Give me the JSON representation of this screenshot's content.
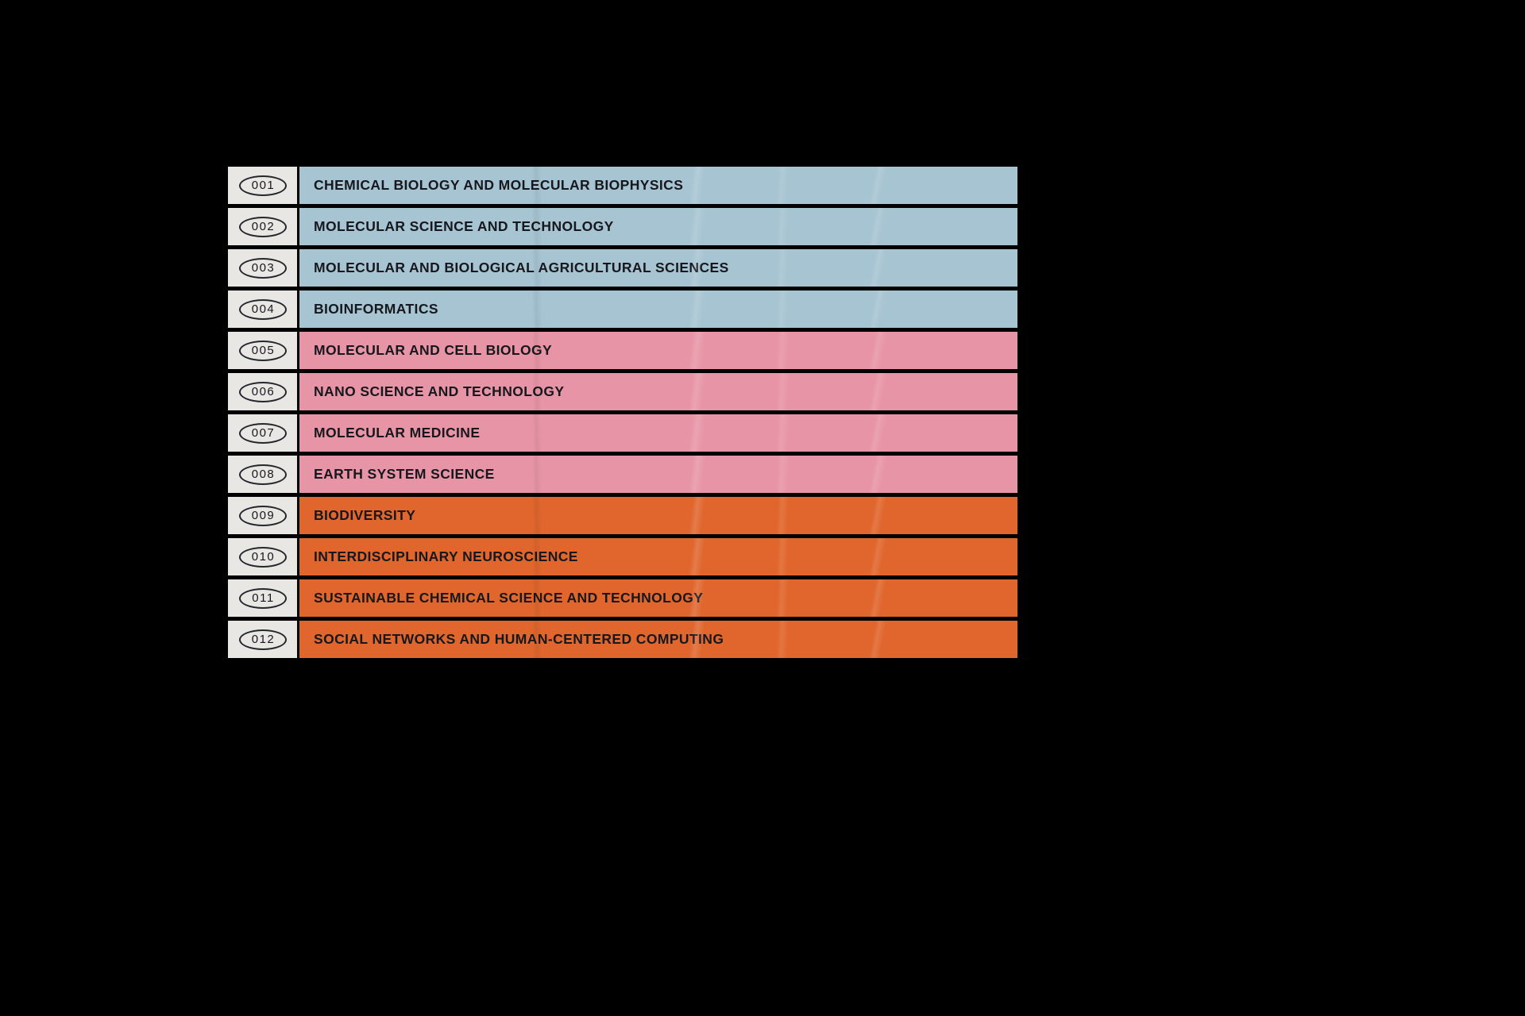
{
  "colors": {
    "background": "#000000",
    "blue": "#a7c4d2",
    "pink": "#e795a6",
    "orange": "#e0662d",
    "index_bg": "#e9e7e3",
    "text": "#16181d"
  },
  "rows": [
    {
      "id": "001",
      "label": "CHEMICAL BIOLOGY AND MOLECULAR BIOPHYSICS",
      "group": "blue"
    },
    {
      "id": "002",
      "label": "MOLECULAR SCIENCE AND TECHNOLOGY",
      "group": "blue"
    },
    {
      "id": "003",
      "label": "MOLECULAR AND BIOLOGICAL AGRICULTURAL SCIENCES",
      "group": "blue"
    },
    {
      "id": "004",
      "label": "BIOINFORMATICS",
      "group": "blue"
    },
    {
      "id": "005",
      "label": "MOLECULAR AND CELL BIOLOGY",
      "group": "pink"
    },
    {
      "id": "006",
      "label": "NANO SCIENCE AND TECHNOLOGY",
      "group": "pink"
    },
    {
      "id": "007",
      "label": "MOLECULAR MEDICINE",
      "group": "pink"
    },
    {
      "id": "008",
      "label": "EARTH SYSTEM SCIENCE",
      "group": "pink"
    },
    {
      "id": "009",
      "label": "BIODIVERSITY",
      "group": "orange"
    },
    {
      "id": "010",
      "label": "INTERDISCIPLINARY NEUROSCIENCE",
      "group": "orange"
    },
    {
      "id": "011",
      "label": "SUSTAINABLE CHEMICAL SCIENCE AND TECHNOLOGY",
      "group": "orange"
    },
    {
      "id": "012",
      "label": "SOCIAL NETWORKS AND HUMAN-CENTERED COMPUTING",
      "group": "orange"
    }
  ]
}
